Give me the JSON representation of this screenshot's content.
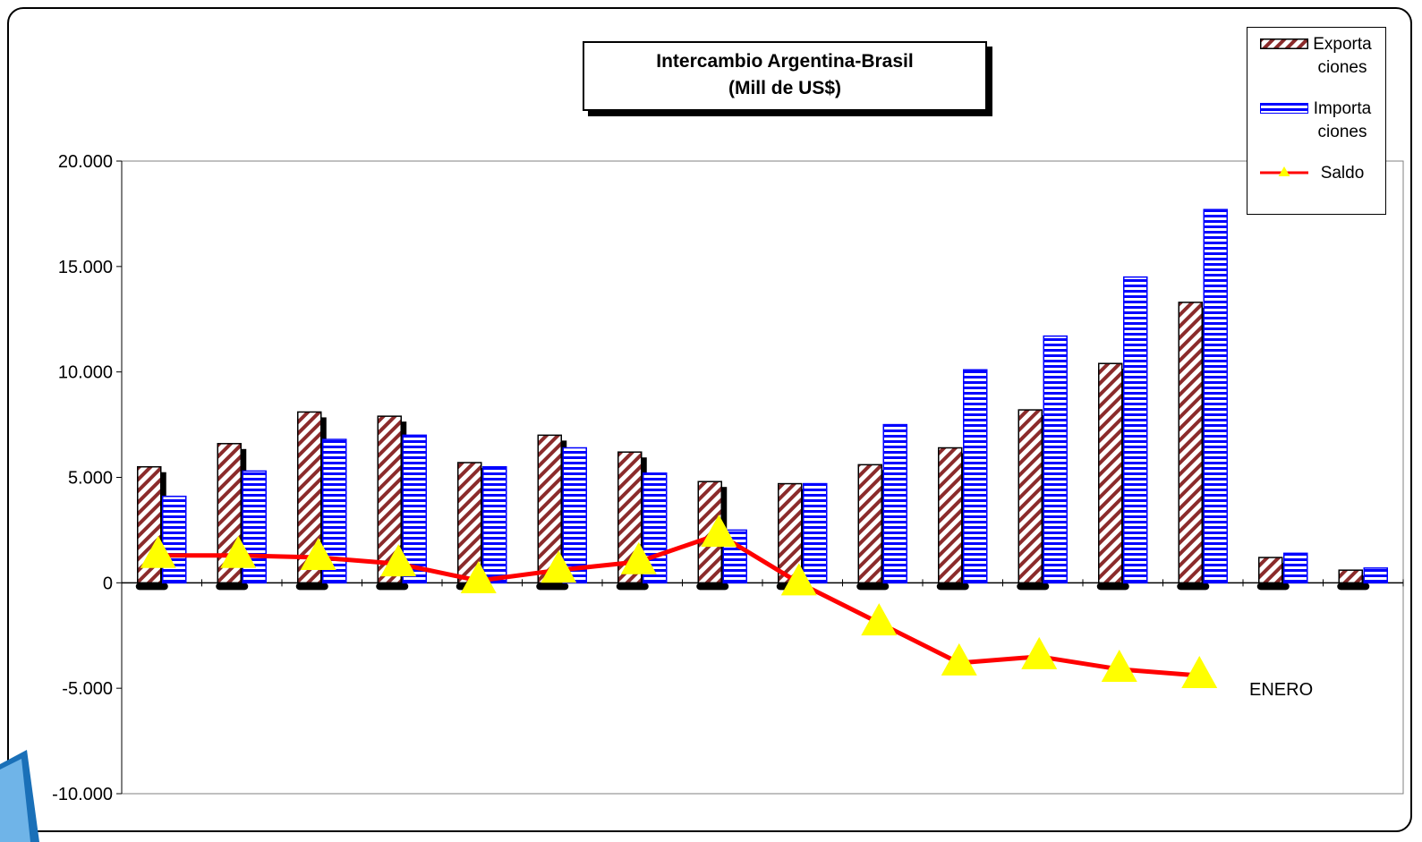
{
  "chart_data": {
    "type": "bar",
    "title_lines": [
      "Intercambio Argentina-Brasil",
      "(Mill de US$)"
    ],
    "ylim": [
      -10000,
      20000
    ],
    "yticks": [
      -10000,
      -5000,
      0,
      5000,
      10000,
      15000,
      20000
    ],
    "ytick_labels": [
      "-10.000",
      "-5.000",
      "0",
      "5.000",
      "10.000",
      "15.000",
      "20.000"
    ],
    "grid": false,
    "legend_position": "top-right",
    "series": [
      {
        "name": "Exporta ciones",
        "kind": "bar",
        "color": "#8b2b2b",
        "values": [
          5500,
          6600,
          8100,
          7900,
          5700,
          7000,
          6200,
          4800,
          4700,
          5600,
          6400,
          8200,
          10400,
          13300,
          1200,
          600
        ]
      },
      {
        "name": "Importa ciones",
        "kind": "bar",
        "color": "#0000ff",
        "values": [
          4100,
          5300,
          6800,
          7000,
          5500,
          6400,
          5200,
          2500,
          4700,
          7500,
          10100,
          11700,
          14500,
          17700,
          1400,
          700
        ]
      },
      {
        "name": "Saldo",
        "kind": "line",
        "color": "#ff0000",
        "marker_color": "#ffff00",
        "values": [
          1300,
          1300,
          1200,
          900,
          100,
          600,
          1000,
          2300,
          0,
          -1900,
          -3800,
          -3500,
          -4100,
          -4400,
          null,
          null
        ]
      }
    ],
    "annotations": [
      "ENERO"
    ]
  },
  "legend": {
    "items": [
      {
        "line1": "Exporta",
        "line2": "ciones"
      },
      {
        "line1": "Importa",
        "line2": "ciones"
      },
      {
        "line1": "Saldo",
        "line2": ""
      }
    ]
  },
  "colors": {
    "export_fill": "#8b2b2b",
    "import_stroke": "#0000ff",
    "saldo_line": "#ff0000",
    "marker": "#ffff00"
  }
}
